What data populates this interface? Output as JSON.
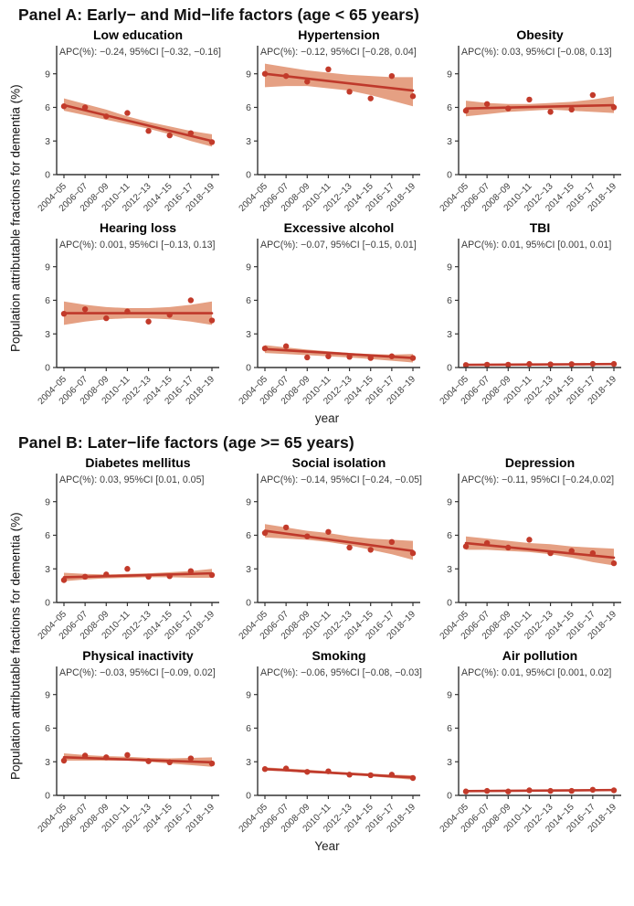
{
  "figure": {
    "y_axis_label": "Population attributable fractions for dementia (%)",
    "colors": {
      "trend_line": "#bf392b",
      "point": "#c23a2a",
      "band": "#e5a083",
      "axis": "#333333",
      "tick_text": "#404040",
      "annotation_text": "#3d3d3d",
      "title_text": "#000000"
    }
  },
  "chart_data": {
    "type": "line",
    "categories": [
      "2004−05",
      "2006−07",
      "2008−09",
      "2010−11",
      "2012−13",
      "2014−15",
      "2016−17",
      "2018−19"
    ],
    "yticks": [
      0,
      3,
      6,
      9
    ],
    "ylim": [
      0,
      10.2
    ],
    "legend": "none",
    "grid": "off",
    "panels": [
      {
        "title": "Panel A: Early− and Mid−life factors (age < 65 years)",
        "xlabel": "year",
        "subplots": [
          {
            "title": "Low education",
            "annotation": "APC(%): −0.24, 95%CI [−0.32, −0.16]",
            "points": [
              6.1,
              6.0,
              5.2,
              5.5,
              3.9,
              3.5,
              3.7,
              2.9
            ],
            "trend": [
              6.2,
              3.0
            ],
            "band_upper": [
              6.8,
              6.3,
              5.8,
              5.2,
              4.7,
              4.3,
              3.9,
              3.6
            ],
            "band_lower": [
              5.7,
              5.3,
              4.9,
              4.5,
              4.1,
              3.6,
              3.0,
              2.5
            ]
          },
          {
            "title": "Hypertension",
            "annotation": "APC(%): −0.12, 95%CI [−0.28, 0.04]",
            "points": [
              9.0,
              8.8,
              8.3,
              9.4,
              7.4,
              6.8,
              8.8,
              7.0
            ],
            "trend": [
              9.0,
              7.5
            ],
            "band_upper": [
              9.9,
              9.6,
              9.3,
              9.1,
              8.9,
              8.8,
              8.7,
              8.7
            ],
            "band_lower": [
              7.8,
              7.9,
              7.9,
              7.7,
              7.5,
              7.1,
              6.6,
              6.1
            ]
          },
          {
            "title": "Obesity",
            "annotation": "APC(%): 0.03, 95%CI [−0.08, 0.13]",
            "points": [
              5.7,
              6.3,
              5.9,
              6.7,
              5.6,
              5.8,
              7.1,
              6.0
            ],
            "trend": [
              5.9,
              6.2
            ],
            "band_upper": [
              6.6,
              6.4,
              6.3,
              6.3,
              6.4,
              6.5,
              6.7,
              7.0
            ],
            "band_lower": [
              5.2,
              5.4,
              5.6,
              5.7,
              5.8,
              5.7,
              5.6,
              5.5
            ]
          },
          {
            "title": "Hearing loss",
            "annotation": "APC(%): 0.001, 95%CI [−0.13, 0.13]",
            "points": [
              4.8,
              5.2,
              4.4,
              5.0,
              4.1,
              4.7,
              6.0,
              4.2
            ],
            "trend": [
              4.85,
              4.85
            ],
            "band_upper": [
              5.9,
              5.6,
              5.4,
              5.3,
              5.3,
              5.4,
              5.6,
              5.9
            ],
            "band_lower": [
              3.8,
              4.1,
              4.3,
              4.4,
              4.4,
              4.3,
              4.1,
              3.8
            ]
          },
          {
            "title": "Excessive alcohol",
            "annotation": "APC(%): −0.07, 95%CI [−0.15, 0.01]",
            "points": [
              1.7,
              1.9,
              0.9,
              1.0,
              0.95,
              0.85,
              1.0,
              0.85
            ],
            "trend": [
              1.65,
              0.85
            ],
            "band_upper": [
              2.0,
              1.8,
              1.6,
              1.45,
              1.3,
              1.2,
              1.15,
              1.2
            ],
            "band_lower": [
              1.3,
              1.2,
              1.1,
              1.0,
              0.9,
              0.75,
              0.6,
              0.45
            ]
          },
          {
            "title": "TBI",
            "annotation": "APC(%): 0.01, 95%CI [0.001, 0.01]",
            "points": [
              0.22,
              0.25,
              0.25,
              0.32,
              0.28,
              0.3,
              0.32,
              0.32
            ],
            "trend": [
              0.24,
              0.31
            ],
            "band_upper": [
              0.3,
              0.3,
              0.31,
              0.33,
              0.34,
              0.36,
              0.37,
              0.39
            ],
            "band_lower": [
              0.18,
              0.2,
              0.21,
              0.23,
              0.24,
              0.25,
              0.25,
              0.25
            ]
          }
        ]
      },
      {
        "title": "Panel B: Later−life factors (age >= 65 years)",
        "xlabel": "Year",
        "subplots": [
          {
            "title": "Diabetes mellitus",
            "annotation": "APC(%): 0.03, 95%CI [0.01, 0.05]",
            "points": [
              2.0,
              2.3,
              2.5,
              3.0,
              2.3,
              2.35,
              2.8,
              2.45
            ],
            "trend": [
              2.25,
              2.6
            ],
            "band_upper": [
              2.65,
              2.55,
              2.5,
              2.55,
              2.6,
              2.7,
              2.8,
              3.0
            ],
            "band_lower": [
              1.9,
              2.05,
              2.15,
              2.2,
              2.25,
              2.25,
              2.2,
              2.2
            ]
          },
          {
            "title": "Social isolation",
            "annotation": "APC(%): −0.14, 95%CI [−0.24, −0.05]",
            "points": [
              6.2,
              6.7,
              5.9,
              6.3,
              4.9,
              4.7,
              5.4,
              4.4
            ],
            "trend": [
              6.4,
              4.6
            ],
            "band_upper": [
              7.0,
              6.7,
              6.4,
              6.2,
              5.9,
              5.7,
              5.6,
              5.5
            ],
            "band_lower": [
              5.8,
              5.7,
              5.6,
              5.4,
              5.1,
              4.7,
              4.3,
              3.8
            ]
          },
          {
            "title": "Depression",
            "annotation": "APC(%): −0.11, 95%CI [−0.24,0.02]",
            "points": [
              5.0,
              5.3,
              4.9,
              5.6,
              4.4,
              4.6,
              4.4,
              3.5
            ],
            "trend": [
              5.3,
              4.0
            ],
            "band_upper": [
              5.9,
              5.7,
              5.5,
              5.3,
              5.2,
              5.0,
              4.9,
              4.8
            ],
            "band_lower": [
              4.7,
              4.7,
              4.6,
              4.5,
              4.3,
              4.0,
              3.6,
              3.3
            ]
          },
          {
            "title": "Physical inactivity",
            "annotation": "APC(%): −0.03, 95%CI [−0.09, 0.02]",
            "points": [
              3.1,
              3.55,
              3.4,
              3.6,
              3.05,
              2.95,
              3.3,
              2.85
            ],
            "trend": [
              3.4,
              2.95
            ],
            "band_upper": [
              3.75,
              3.6,
              3.5,
              3.45,
              3.35,
              3.3,
              3.35,
              3.4
            ],
            "band_lower": [
              3.1,
              3.1,
              3.1,
              3.1,
              3.0,
              2.85,
              2.7,
              2.55
            ]
          },
          {
            "title": "Smoking",
            "annotation": "APC(%): −0.06, 95%CI [−0.08, −0.03]",
            "points": [
              2.35,
              2.4,
              2.1,
              2.15,
              1.85,
              1.8,
              1.85,
              1.55
            ],
            "trend": [
              2.35,
              1.6
            ],
            "band_upper": [
              2.5,
              2.4,
              2.3,
              2.15,
              2.05,
              1.95,
              1.85,
              1.8
            ],
            "band_lower": [
              2.2,
              2.15,
              2.0,
              1.95,
              1.8,
              1.7,
              1.55,
              1.4
            ]
          },
          {
            "title": "Air pollution",
            "annotation": "APC(%): 0.01, 95%CI [0.001, 0.02]",
            "points": [
              0.35,
              0.4,
              0.35,
              0.45,
              0.4,
              0.4,
              0.5,
              0.45
            ],
            "trend": [
              0.38,
              0.48
            ],
            "band_upper": [
              0.46,
              0.47,
              0.47,
              0.48,
              0.5,
              0.52,
              0.54,
              0.57
            ],
            "band_lower": [
              0.3,
              0.33,
              0.35,
              0.37,
              0.39,
              0.4,
              0.41,
              0.41
            ]
          }
        ]
      }
    ]
  }
}
